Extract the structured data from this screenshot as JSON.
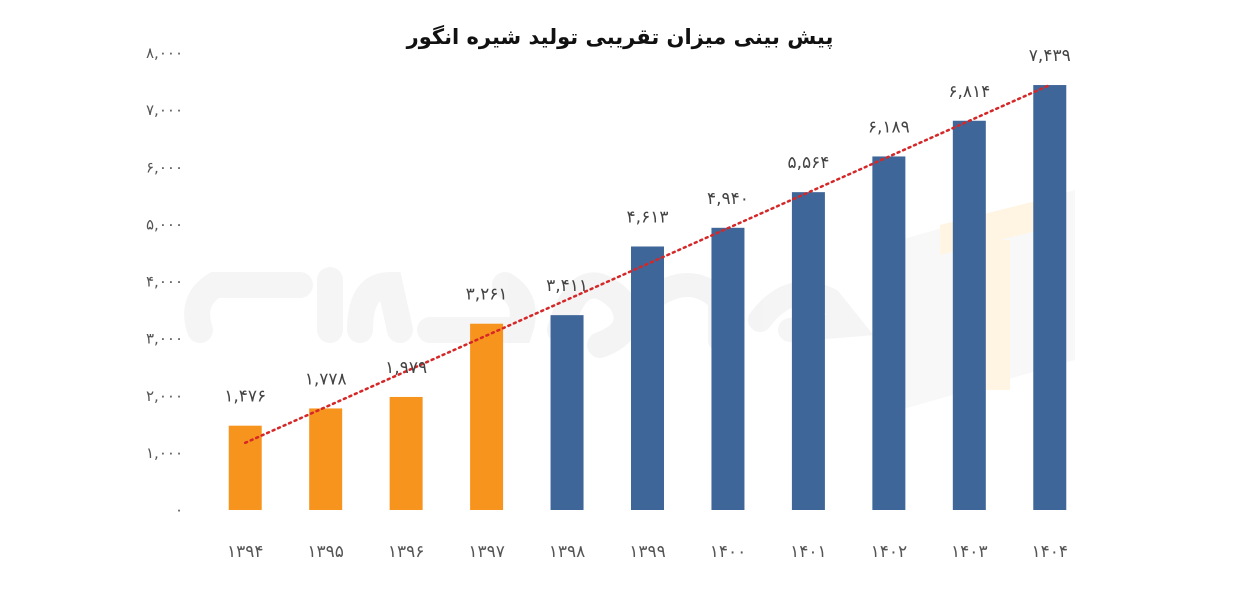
{
  "chart_data": {
    "type": "bar",
    "title": "پیش بینی میزان تقریبی تولید شیره انگور",
    "categories": [
      "۱۳۹۴",
      "۱۳۹۵",
      "۱۳۹۶",
      "۱۳۹۷",
      "۱۳۹۸",
      "۱۳۹۹",
      "۱۴۰۰",
      "۱۴۰۱",
      "۱۴۰۲",
      "۱۴۰۳",
      "۱۴۰۴"
    ],
    "values": [
      1476,
      1778,
      1979,
      3261,
      3411,
      4613,
      4940,
      5564,
      6189,
      6814,
      7439
    ],
    "value_labels": [
      "۱,۴۷۶",
      "۱,۷۷۸",
      "۱,۹۷۹",
      "۳,۲۶۱",
      "۳,۴۱۱",
      "۴,۶۱۳",
      "۴,۹۴۰",
      "۵,۵۶۴",
      "۶,۱۸۹",
      "۶,۸۱۴",
      "۷,۴۳۹"
    ],
    "bar_colors": [
      "#f7941d",
      "#f7941d",
      "#f7941d",
      "#f7941d",
      "#3f6699",
      "#3f6699",
      "#3f6699",
      "#3f6699",
      "#3f6699",
      "#3f6699",
      "#3f6699"
    ],
    "ylim": [
      0,
      8000
    ],
    "yticks": [
      0,
      1000,
      2000,
      3000,
      4000,
      5000,
      6000,
      7000,
      8000
    ],
    "ytick_labels": [
      "۰",
      "۱,۰۰۰",
      "۲,۰۰۰",
      "۳,۰۰۰",
      "۴,۰۰۰",
      "۵,۰۰۰",
      "۶,۰۰۰",
      "۷,۰۰۰",
      "۸,۰۰۰"
    ],
    "trendline": {
      "style": "dotted",
      "color": "#d62728",
      "from": [
        1,
        1176
      ],
      "to": [
        11,
        7439
      ]
    },
    "grid": false,
    "legend": "none",
    "xlabel": "",
    "ylabel": ""
  },
  "watermark": {
    "text": "طرح مارکت",
    "accent_color": "#ffcc66"
  }
}
